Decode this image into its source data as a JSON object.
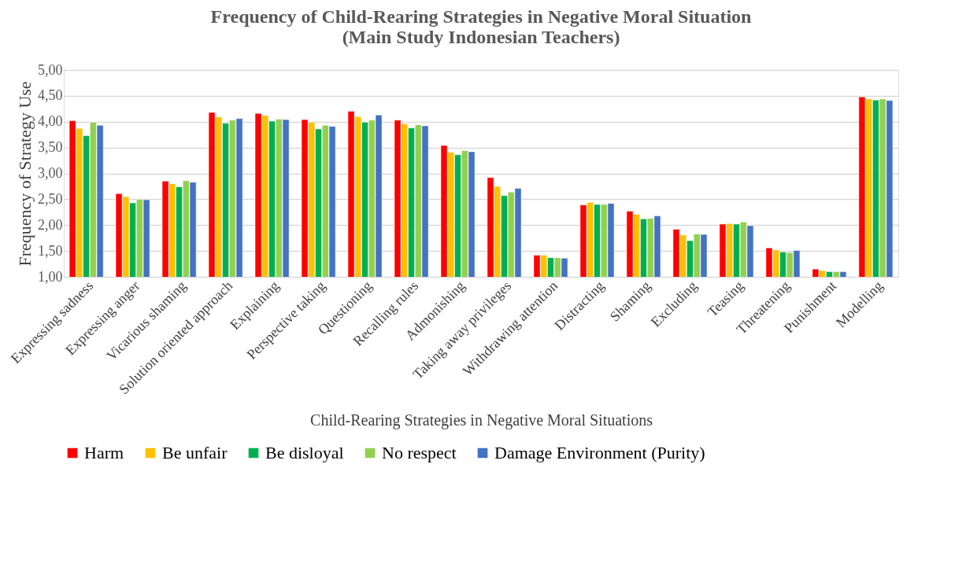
{
  "chart_data": {
    "type": "bar",
    "title": "Frequency of Child-Rearing Strategies in Negative Moral Situation\n(Main Study Indonesian Teachers)",
    "xlabel": "Child-Rearing Strategies in Negative Moral Situations",
    "ylabel": "Frequency of Strategy Use",
    "categories": [
      "Expressing sadness",
      "Expressing anger",
      "Vicarious shaming",
      "Solution oriented approach",
      "Explaining",
      "Perspective taking",
      "Questioning",
      "Recalling rules",
      "Admonishing",
      "Taking away privileges",
      "Withdrawing attention",
      "Distracting",
      "Shaming",
      "Excluding",
      "Teasing",
      "Threatening",
      "Punishment",
      "Modelling"
    ],
    "series": [
      {
        "name": "Harm",
        "color": "#ff0000",
        "values": [
          4.02,
          2.61,
          2.85,
          4.18,
          4.16,
          4.04,
          4.2,
          4.03,
          3.54,
          2.92,
          1.42,
          2.39,
          2.27,
          1.92,
          2.02,
          1.56,
          1.15,
          4.48
        ]
      },
      {
        "name": "Be unfair",
        "color": "#ffc000",
        "values": [
          3.87,
          2.55,
          2.8,
          4.09,
          4.12,
          3.99,
          4.1,
          3.96,
          3.41,
          2.75,
          1.42,
          2.44,
          2.21,
          1.81,
          2.03,
          1.52,
          1.12,
          4.44
        ]
      },
      {
        "name": "Be disloyal",
        "color": "#00b050",
        "values": [
          3.73,
          2.43,
          2.74,
          3.97,
          4.01,
          3.86,
          3.99,
          3.88,
          3.36,
          2.57,
          1.37,
          2.4,
          2.12,
          1.7,
          2.02,
          1.48,
          1.1,
          4.42
        ]
      },
      {
        "name": "No respect",
        "color": "#92d050",
        "values": [
          3.99,
          2.5,
          2.86,
          4.03,
          4.05,
          3.93,
          4.03,
          3.94,
          3.44,
          2.64,
          1.37,
          2.4,
          2.13,
          1.83,
          2.06,
          1.47,
          1.1,
          4.44
        ]
      },
      {
        "name": "Damage Environment (Purity)",
        "color": "#4472c4",
        "values": [
          3.93,
          2.49,
          2.83,
          4.06,
          4.04,
          3.91,
          4.13,
          3.92,
          3.42,
          2.71,
          1.36,
          2.42,
          2.18,
          1.82,
          1.99,
          1.51,
          1.1,
          4.41
        ]
      }
    ],
    "ylim": [
      1,
      5
    ],
    "yticks": [
      {
        "value": 1,
        "label": "1,00"
      },
      {
        "value": 1.5,
        "label": "1,50"
      },
      {
        "value": 2,
        "label": "2,00"
      },
      {
        "value": 2.5,
        "label": "2,50"
      },
      {
        "value": 3,
        "label": "3,00"
      },
      {
        "value": 3.5,
        "label": "3,50"
      },
      {
        "value": 4,
        "label": "4,00"
      },
      {
        "value": 4.5,
        "label": "4,50"
      },
      {
        "value": 5,
        "label": "5,00"
      }
    ],
    "grid": "y",
    "legend": "bottom"
  }
}
